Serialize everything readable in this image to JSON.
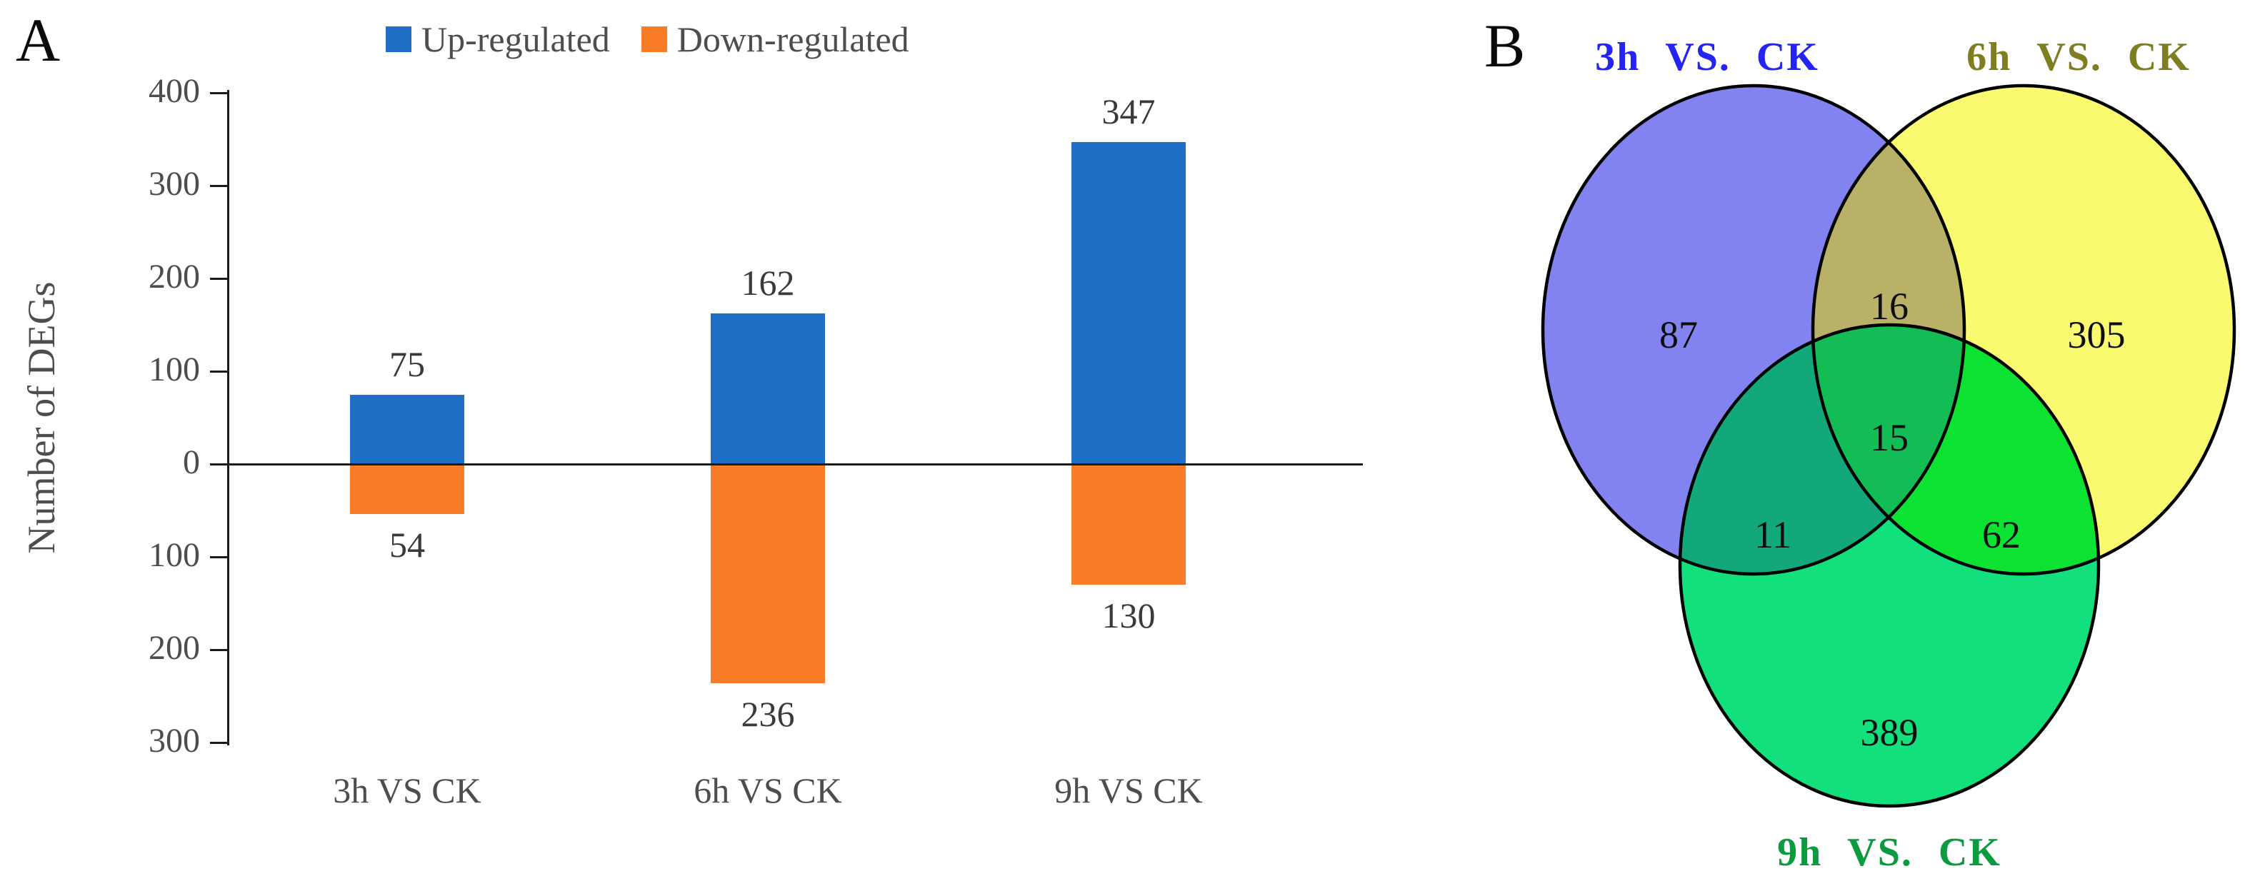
{
  "panels": {
    "a_label": "A",
    "b_label": "B"
  },
  "chart_data": [
    {
      "type": "bar",
      "panel": "A",
      "ylabel": "Number of DEGs",
      "categories": [
        "3h VS CK",
        "6h VS CK",
        "9h VS CK"
      ],
      "series": [
        {
          "name": "Up-regulated",
          "color": "#1E70C6",
          "direction": "up",
          "values": [
            75,
            162,
            347
          ]
        },
        {
          "name": "Down-regulated",
          "color": "#F97D28",
          "direction": "down",
          "values": [
            54,
            236,
            130
          ]
        }
      ],
      "y_axis": {
        "ticks_top_to_bottom": [
          "400",
          "300",
          "200",
          "100",
          "0",
          "100",
          "200",
          "300"
        ],
        "unit_range": [
          -300,
          400
        ],
        "grid": false
      },
      "legend_position": "top"
    },
    {
      "type": "venn3",
      "panel": "B",
      "sets": [
        {
          "label": "3h VS. CK",
          "label_color": "#2424F5",
          "fill": "#8282F0"
        },
        {
          "label": "6h VS. CK",
          "label_color": "#7E7E20",
          "fill": "#FAFA70"
        },
        {
          "label": "9h VS. CK",
          "label_color": "#0A9B3E",
          "fill": "#12E07C"
        }
      ],
      "overlap_fills": {
        "ab": "#B9B168",
        "ac": "#12A87A",
        "bc": "#0CE231",
        "abc": "#12BD55"
      },
      "outline_color": "#000000",
      "counts": {
        "a_only": 87,
        "ab": 16,
        "b_only": 305,
        "abc": 15,
        "ac": 11,
        "bc": 62,
        "c_only": 389
      }
    }
  ]
}
